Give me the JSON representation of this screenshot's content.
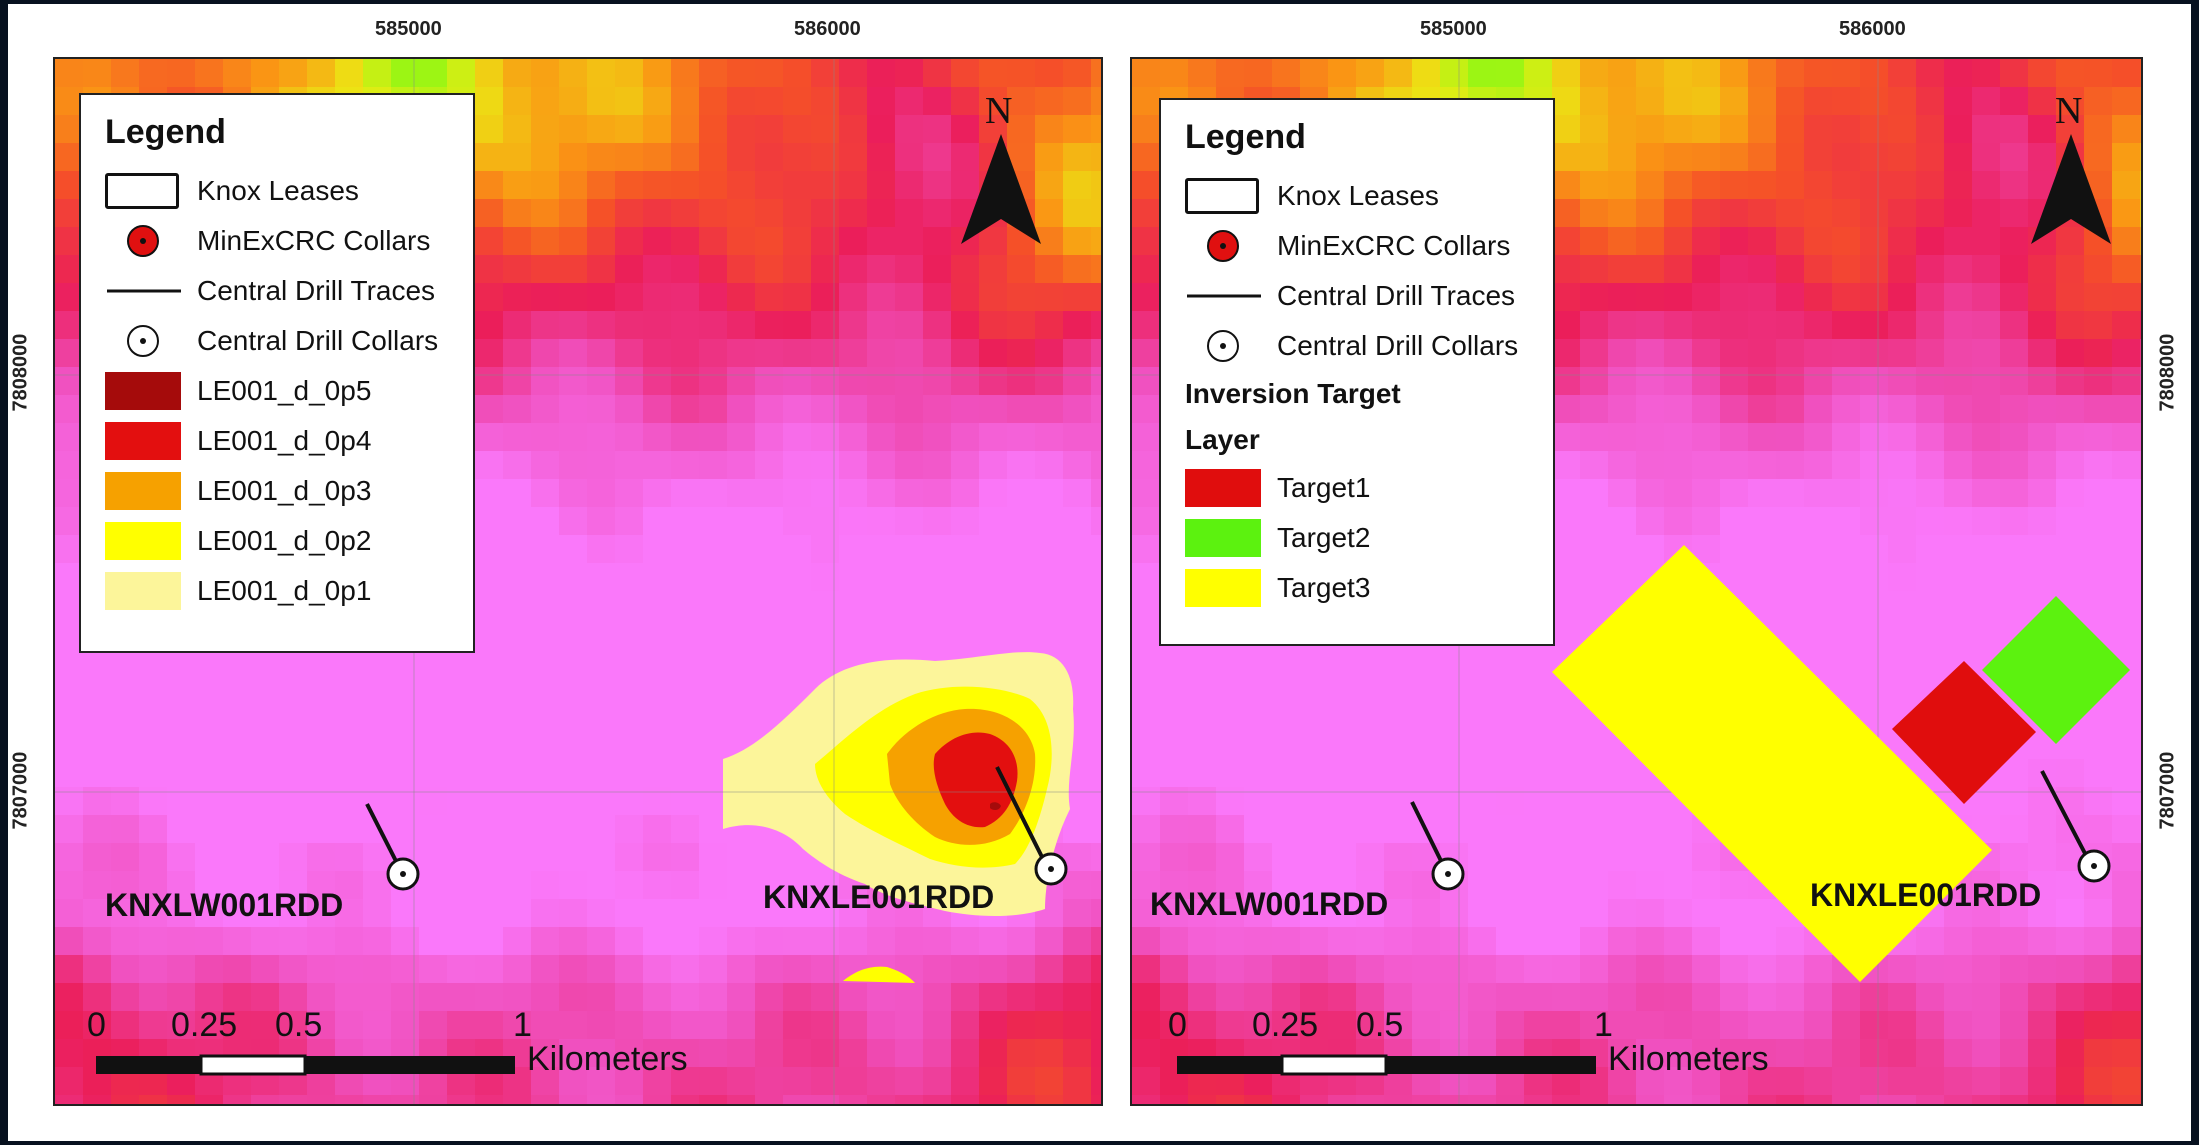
{
  "coordinates": {
    "easting": [
      "585000",
      "586000"
    ],
    "northing": [
      "7808000",
      "7807000"
    ]
  },
  "north_arrow": "N",
  "scale_bar": {
    "ticks": [
      "0",
      "0.25",
      "0.5",
      "1"
    ],
    "unit": "Kilometers"
  },
  "drill_holes": [
    "KNXLW001RDD",
    "KNXLE001RDD"
  ],
  "colors": {
    "le_0p5": "#a50b0b",
    "le_0p4": "#e30f0f",
    "le_0p3": "#f6a100",
    "le_0p2": "#ffff00",
    "le_0p1": "#fcf59a",
    "target1": "#e00d0d",
    "target2": "#5cf20f",
    "target3": "#ffff00",
    "collar_red": "#e01010"
  },
  "panels": [
    {
      "legend": {
        "title": "Legend",
        "items": [
          {
            "symbol": "lease-box",
            "label": "Knox Leases"
          },
          {
            "symbol": "red-dot",
            "label": "MinExCRC Collars"
          },
          {
            "symbol": "line",
            "label": "Central Drill Traces"
          },
          {
            "symbol": "collar",
            "label": "Central Drill Collars"
          },
          {
            "symbol": "swatch",
            "color": "#a50b0b",
            "label": "LE001_d_0p5"
          },
          {
            "symbol": "swatch",
            "color": "#e30f0f",
            "label": "LE001_d_0p4"
          },
          {
            "symbol": "swatch",
            "color": "#f6a100",
            "label": "LE001_d_0p3"
          },
          {
            "symbol": "swatch",
            "color": "#ffff00",
            "label": "LE001_d_0p2"
          },
          {
            "symbol": "swatch",
            "color": "#fcf59a",
            "label": "LE001_d_0p1"
          }
        ]
      }
    },
    {
      "legend": {
        "title": "Legend",
        "items": [
          {
            "symbol": "lease-box",
            "label": "Knox Leases"
          },
          {
            "symbol": "red-dot",
            "label": "MinExCRC Collars"
          },
          {
            "symbol": "line",
            "label": "Central Drill Traces"
          },
          {
            "symbol": "collar",
            "label": "Central Drill Collars"
          },
          {
            "symbol": "heading",
            "label": "Inversion Target"
          },
          {
            "symbol": "heading",
            "label": "Layer"
          },
          {
            "symbol": "swatch",
            "color": "#e00d0d",
            "label": "Target1"
          },
          {
            "symbol": "swatch",
            "color": "#5cf20f",
            "label": "Target2"
          },
          {
            "symbol": "swatch",
            "color": "#ffff00",
            "label": "Target3"
          }
        ]
      }
    }
  ]
}
